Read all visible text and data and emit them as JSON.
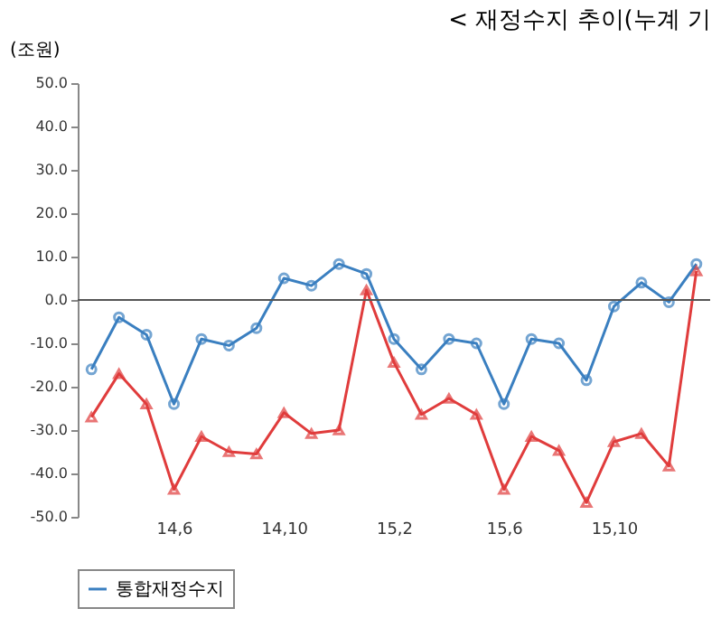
{
  "chart_data": {
    "type": "line",
    "title": "< 재정수지 추이(누계 기",
    "ylabel": "(조원)",
    "categories": [
      null,
      null,
      null,
      "14,6",
      null,
      null,
      null,
      "14,10",
      null,
      null,
      null,
      "15,2",
      null,
      null,
      null,
      "15,6",
      null,
      null,
      null,
      "15,10",
      null,
      null,
      null
    ],
    "series": [
      {
        "name": "통합재정수지",
        "color": "#3a7fc0",
        "marker": "circle",
        "values": [
          -16,
          -4,
          -8,
          -24,
          -9,
          -10.5,
          -6.5,
          5,
          3.3,
          8.3,
          6,
          -9,
          -16,
          -9,
          -10,
          -24,
          -9,
          -10,
          -18.5,
          -1.5,
          4,
          -0.5,
          8.3
        ]
      },
      {
        "color": "#e03c3c",
        "marker": "triangle",
        "values": [
          -27,
          -17,
          -24,
          -43.7,
          -31.5,
          -35,
          -35.5,
          -26,
          -30.8,
          -30,
          2.3,
          -14.4,
          -26.4,
          -22.7,
          -26.4,
          -43.7,
          -31.5,
          -34.7,
          -46.7,
          -32.7,
          -30.8,
          -38.3,
          6.7
        ]
      }
    ],
    "ylim": [
      -50,
      50
    ],
    "yticks": [
      {
        "value": -50,
        "label": "-50.0"
      },
      {
        "value": -40,
        "label": "-40.0"
      },
      {
        "value": -30,
        "label": "-30.0"
      },
      {
        "value": -20,
        "label": "-20.0"
      },
      {
        "value": -10,
        "label": "-10.0"
      },
      {
        "value": 0,
        "label": "0.0"
      },
      {
        "value": 10,
        "label": "10.0"
      },
      {
        "value": 20,
        "label": "20.0"
      },
      {
        "value": 30,
        "label": "30.0"
      },
      {
        "value": 40,
        "label": "40.0"
      },
      {
        "value": 50,
        "label": "50.0"
      }
    ],
    "ref_lines": [
      {
        "axis": "y",
        "value": 0,
        "color": "#555555"
      }
    ],
    "grid": false,
    "legend": "bottom"
  }
}
